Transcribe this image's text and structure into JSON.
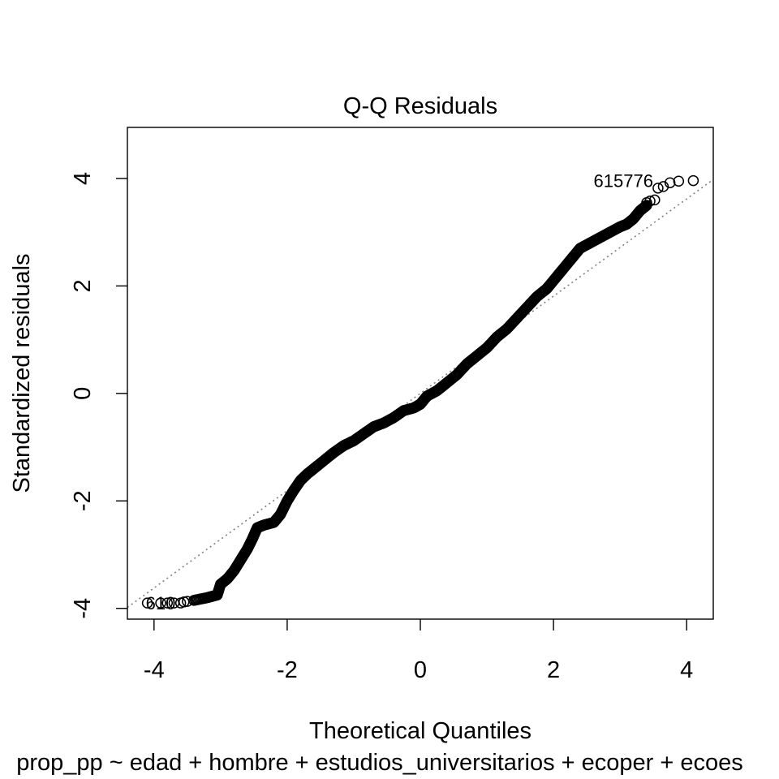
{
  "chart_data": {
    "type": "scatter",
    "title": "Q-Q Residuals",
    "xlabel": "Theoretical Quantiles",
    "ylabel": "Standardized residuals",
    "subtitle": "prop_pp ~ edad + hombre + estudios_universitarios + ecoper + ecoes",
    "xlim": [
      -4.4,
      4.4
    ],
    "ylim": [
      -4.2,
      4.95
    ],
    "xticks": [
      -4,
      -2,
      0,
      2,
      4
    ],
    "yticks": [
      -4,
      -2,
      0,
      2,
      4
    ],
    "xtick_labels": [
      "-4",
      "-2",
      "0",
      "2",
      "4"
    ],
    "ytick_labels": [
      "-4",
      "-2",
      "0",
      "2",
      "4"
    ],
    "grid": false,
    "reference_line": {
      "style": "dotted",
      "color": "#808080",
      "slope": 0.905,
      "intercept": 0.0
    },
    "point_style": {
      "shape": "open-circle",
      "color": "#000000"
    },
    "curve_points": [
      [
        -3.4,
        -3.85
      ],
      [
        -3.2,
        -3.8
      ],
      [
        -3.05,
        -3.75
      ],
      [
        -3.0,
        -3.55
      ],
      [
        -2.9,
        -3.45
      ],
      [
        -2.8,
        -3.3
      ],
      [
        -2.7,
        -3.1
      ],
      [
        -2.6,
        -2.9
      ],
      [
        -2.52,
        -2.7
      ],
      [
        -2.45,
        -2.5
      ],
      [
        -2.35,
        -2.45
      ],
      [
        -2.2,
        -2.4
      ],
      [
        -2.1,
        -2.25
      ],
      [
        -2.0,
        -2.0
      ],
      [
        -1.9,
        -1.8
      ],
      [
        -1.8,
        -1.62
      ],
      [
        -1.7,
        -1.5
      ],
      [
        -1.6,
        -1.4
      ],
      [
        -1.45,
        -1.25
      ],
      [
        -1.3,
        -1.1
      ],
      [
        -1.15,
        -0.97
      ],
      [
        -1.0,
        -0.88
      ],
      [
        -0.85,
        -0.75
      ],
      [
        -0.7,
        -0.62
      ],
      [
        -0.55,
        -0.55
      ],
      [
        -0.4,
        -0.45
      ],
      [
        -0.25,
        -0.32
      ],
      [
        -0.1,
        -0.27
      ],
      [
        0.0,
        -0.2
      ],
      [
        0.1,
        -0.05
      ],
      [
        0.25,
        0.05
      ],
      [
        0.4,
        0.2
      ],
      [
        0.55,
        0.35
      ],
      [
        0.7,
        0.55
      ],
      [
        0.85,
        0.7
      ],
      [
        1.0,
        0.85
      ],
      [
        1.15,
        1.05
      ],
      [
        1.3,
        1.2
      ],
      [
        1.45,
        1.4
      ],
      [
        1.6,
        1.6
      ],
      [
        1.75,
        1.8
      ],
      [
        1.9,
        1.95
      ],
      [
        2.0,
        2.1
      ],
      [
        2.1,
        2.25
      ],
      [
        2.2,
        2.4
      ],
      [
        2.3,
        2.55
      ],
      [
        2.4,
        2.7
      ],
      [
        2.55,
        2.8
      ],
      [
        2.7,
        2.9
      ],
      [
        2.85,
        3.0
      ],
      [
        3.0,
        3.1
      ],
      [
        3.1,
        3.15
      ],
      [
        3.2,
        3.25
      ],
      [
        3.3,
        3.4
      ],
      [
        3.4,
        3.5
      ]
    ],
    "tail_points": [
      [
        -4.1,
        -3.9
      ],
      [
        -3.9,
        -3.9
      ],
      [
        -3.8,
        -3.9
      ],
      [
        -3.7,
        -3.9
      ],
      [
        -3.6,
        -3.9
      ],
      [
        -3.55,
        -3.88
      ],
      [
        -3.5,
        -3.87
      ],
      [
        3.4,
        3.55
      ],
      [
        3.45,
        3.58
      ],
      [
        3.52,
        3.6
      ],
      [
        3.57,
        3.82
      ],
      [
        3.65,
        3.85
      ],
      [
        3.75,
        3.92
      ],
      [
        3.88,
        3.95
      ],
      [
        4.1,
        3.96
      ]
    ],
    "annotations": [
      {
        "label": "615776",
        "x": 3.05,
        "y": 3.96
      },
      {
        "label": "610",
        "x": -3.9,
        "y": -3.9
      }
    ]
  }
}
